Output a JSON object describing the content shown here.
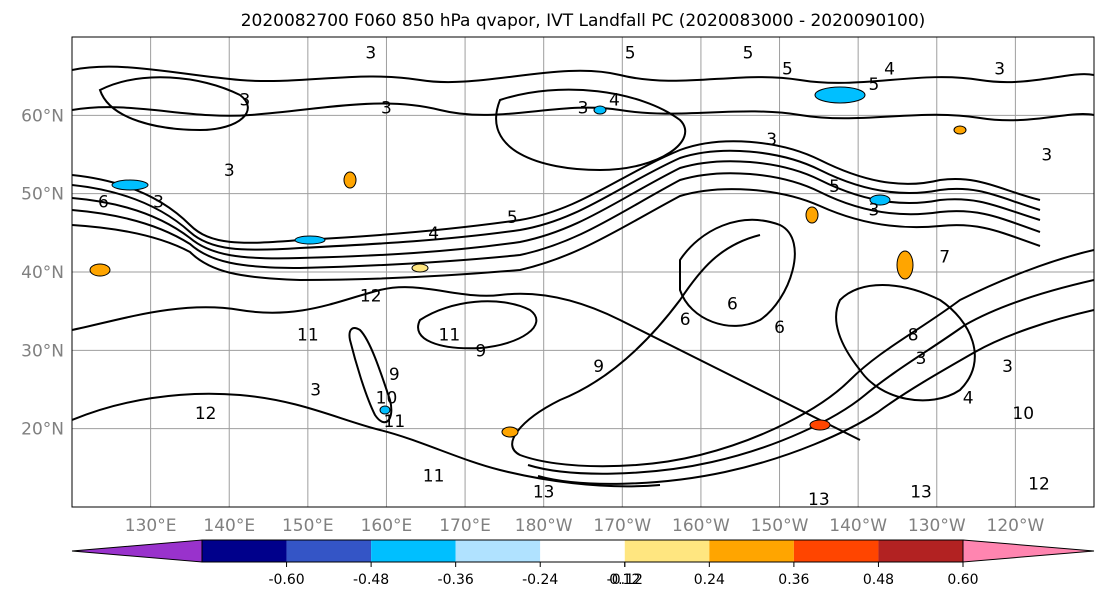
{
  "chart_data": {
    "type": "contour",
    "title": "2020082700 F060 850 hPa qvapor, IVT Landfall PC (2020083000 - 2020090100)",
    "grid": true,
    "x_ticks": [
      "130°E",
      "140°E",
      "150°E",
      "160°E",
      "170°E",
      "180°W",
      "170°W",
      "160°W",
      "150°W",
      "140°W",
      "130°W",
      "120°W"
    ],
    "x_tick_lon": [
      130,
      140,
      150,
      160,
      170,
      180,
      190,
      200,
      210,
      220,
      230,
      240
    ],
    "y_ticks": [
      "20°N",
      "30°N",
      "40°N",
      "50°N",
      "60°N"
    ],
    "y_tick_lat": [
      20,
      30,
      40,
      50,
      60
    ],
    "lon_range": [
      120,
      250
    ],
    "lat_range": [
      10,
      70
    ],
    "colorbar": {
      "ticks": [
        "-0.60",
        "-0.48",
        "-0.36",
        "-0.24",
        "-0.12",
        "0.12",
        "0.24",
        "0.36",
        "0.48",
        "0.60"
      ],
      "colors": [
        "#9932cc",
        "#00008b",
        "#3455c6",
        "#00bfff",
        "#b0e2ff",
        "#ffffff",
        "#ffe680",
        "#ffa500",
        "#ff4500",
        "#b22222",
        "#ff85b0"
      ]
    },
    "contour_labels": [
      {
        "text": "6",
        "lon": 124,
        "lat": 49
      },
      {
        "text": "3",
        "lon": 131,
        "lat": 49
      },
      {
        "text": "3",
        "lon": 140,
        "lat": 53
      },
      {
        "text": "3",
        "lon": 142,
        "lat": 62
      },
      {
        "text": "3",
        "lon": 158,
        "lat": 68
      },
      {
        "text": "3",
        "lon": 160,
        "lat": 61
      },
      {
        "text": "4",
        "lon": 166,
        "lat": 45
      },
      {
        "text": "5",
        "lon": 176,
        "lat": 47
      },
      {
        "text": "3",
        "lon": 185,
        "lat": 61
      },
      {
        "text": "4",
        "lon": 189,
        "lat": 62
      },
      {
        "text": "5",
        "lon": 191,
        "lat": 68
      },
      {
        "text": "5",
        "lon": 206,
        "lat": 68
      },
      {
        "text": "5",
        "lon": 211,
        "lat": 66
      },
      {
        "text": "3",
        "lon": 209,
        "lat": 57
      },
      {
        "text": "5",
        "lon": 217,
        "lat": 51
      },
      {
        "text": "3",
        "lon": 222,
        "lat": 48
      },
      {
        "text": "4",
        "lon": 224,
        "lat": 66
      },
      {
        "text": "5",
        "lon": 222,
        "lat": 64
      },
      {
        "text": "3",
        "lon": 238,
        "lat": 66
      },
      {
        "text": "3",
        "lon": 244,
        "lat": 55
      },
      {
        "text": "7",
        "lon": 231,
        "lat": 42
      },
      {
        "text": "12",
        "lon": 158,
        "lat": 37
      },
      {
        "text": "11",
        "lon": 150,
        "lat": 32
      },
      {
        "text": "11",
        "lon": 168,
        "lat": 32
      },
      {
        "text": "9",
        "lon": 172,
        "lat": 30
      },
      {
        "text": "9",
        "lon": 161,
        "lat": 27
      },
      {
        "text": "10",
        "lon": 160,
        "lat": 24
      },
      {
        "text": "11",
        "lon": 161,
        "lat": 21
      },
      {
        "text": "12",
        "lon": 137,
        "lat": 22
      },
      {
        "text": "3",
        "lon": 151,
        "lat": 25
      },
      {
        "text": "9",
        "lon": 187,
        "lat": 28
      },
      {
        "text": "6",
        "lon": 204,
        "lat": 36
      },
      {
        "text": "6",
        "lon": 198,
        "lat": 34
      },
      {
        "text": "6",
        "lon": 210,
        "lat": 33
      },
      {
        "text": "8",
        "lon": 227,
        "lat": 32
      },
      {
        "text": "3",
        "lon": 228,
        "lat": 29
      },
      {
        "text": "3",
        "lon": 239,
        "lat": 28
      },
      {
        "text": "4",
        "lon": 234,
        "lat": 24
      },
      {
        "text": "10",
        "lon": 241,
        "lat": 22
      },
      {
        "text": "13",
        "lon": 180,
        "lat": 12
      },
      {
        "text": "11",
        "lon": 166,
        "lat": 14
      },
      {
        "text": "13",
        "lon": 215,
        "lat": 11
      },
      {
        "text": "13",
        "lon": 228,
        "lat": 12
      },
      {
        "text": "12",
        "lon": 243,
        "lat": 13
      }
    ]
  }
}
